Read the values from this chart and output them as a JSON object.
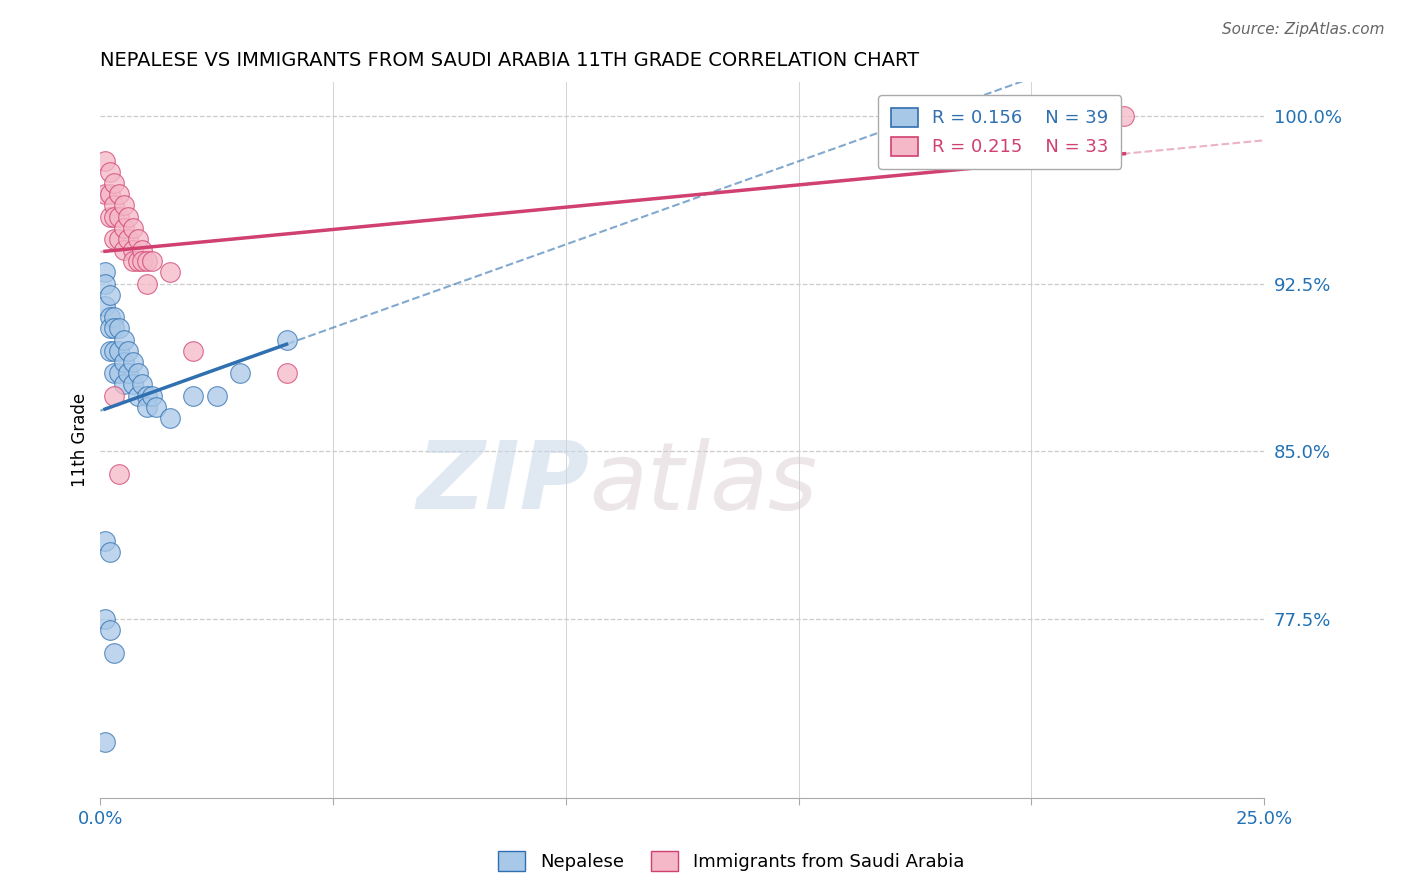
{
  "title": "NEPALESE VS IMMIGRANTS FROM SAUDI ARABIA 11TH GRADE CORRELATION CHART",
  "source_text": "Source: ZipAtlas.com",
  "ylabel": "11th Grade",
  "watermark_zip": "ZIP",
  "watermark_atlas": "atlas",
  "blue_label": "Nepalese",
  "pink_label": "Immigrants from Saudi Arabia",
  "blue_R": 0.156,
  "blue_N": 39,
  "pink_R": 0.215,
  "pink_N": 33,
  "xlim": [
    0.0,
    0.25
  ],
  "ylim": [
    0.695,
    1.015
  ],
  "xticks": [
    0.0,
    0.05,
    0.1,
    0.15,
    0.2,
    0.25
  ],
  "xticklabels": [
    "0.0%",
    "",
    "",
    "",
    "",
    "25.0%"
  ],
  "yticks": [
    0.775,
    0.85,
    0.925,
    1.0
  ],
  "yticklabels": [
    "77.5%",
    "85.0%",
    "92.5%",
    "100.0%"
  ],
  "blue_color": "#a8c8e8",
  "pink_color": "#f4b8c8",
  "blue_line_color": "#3070b0",
  "pink_line_color": "#d04070",
  "grid_color": "#cccccc",
  "blue_x": [
    0.001,
    0.001,
    0.001,
    0.002,
    0.002,
    0.002,
    0.002,
    0.003,
    0.003,
    0.003,
    0.003,
    0.004,
    0.004,
    0.004,
    0.005,
    0.005,
    0.005,
    0.006,
    0.006,
    0.007,
    0.007,
    0.008,
    0.008,
    0.009,
    0.01,
    0.01,
    0.011,
    0.012,
    0.015,
    0.02,
    0.025,
    0.03,
    0.04,
    0.001,
    0.002,
    0.001,
    0.002,
    0.001,
    0.003
  ],
  "blue_y": [
    0.93,
    0.925,
    0.915,
    0.92,
    0.91,
    0.905,
    0.895,
    0.91,
    0.905,
    0.895,
    0.885,
    0.905,
    0.895,
    0.885,
    0.9,
    0.89,
    0.88,
    0.895,
    0.885,
    0.89,
    0.88,
    0.885,
    0.875,
    0.88,
    0.875,
    0.87,
    0.875,
    0.87,
    0.865,
    0.875,
    0.875,
    0.885,
    0.9,
    0.81,
    0.805,
    0.775,
    0.77,
    0.72,
    0.76
  ],
  "pink_x": [
    0.001,
    0.001,
    0.002,
    0.002,
    0.002,
    0.003,
    0.003,
    0.003,
    0.003,
    0.004,
    0.004,
    0.004,
    0.005,
    0.005,
    0.005,
    0.006,
    0.006,
    0.007,
    0.007,
    0.007,
    0.008,
    0.008,
    0.009,
    0.009,
    0.01,
    0.01,
    0.011,
    0.015,
    0.02,
    0.04,
    0.003,
    0.004,
    0.22
  ],
  "pink_y": [
    0.98,
    0.965,
    0.975,
    0.965,
    0.955,
    0.97,
    0.96,
    0.955,
    0.945,
    0.965,
    0.955,
    0.945,
    0.96,
    0.95,
    0.94,
    0.955,
    0.945,
    0.95,
    0.94,
    0.935,
    0.945,
    0.935,
    0.94,
    0.935,
    0.935,
    0.925,
    0.935,
    0.93,
    0.895,
    0.885,
    0.875,
    0.84,
    1.0
  ]
}
